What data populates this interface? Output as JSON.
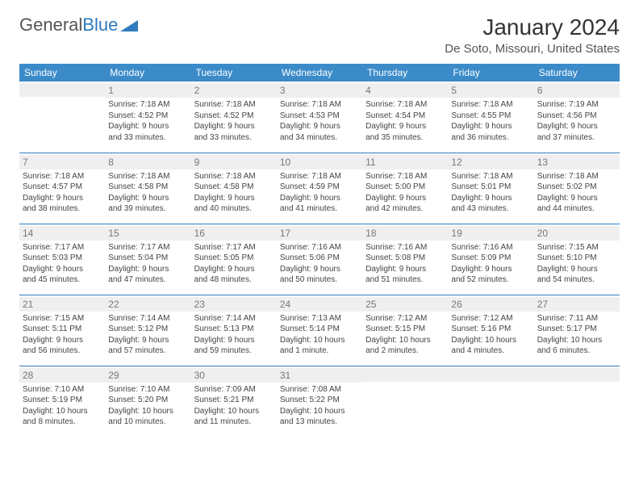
{
  "logo": {
    "text1": "General",
    "text2": "Blue"
  },
  "title": "January 2024",
  "location": "De Soto, Missouri, United States",
  "colors": {
    "header_bg": "#3b8bc9",
    "header_text": "#ffffff",
    "row_divider": "#2f7bbf",
    "daynum_bg": "#efefef",
    "daynum_text": "#777777",
    "body_text": "#444444",
    "logo_blue": "#2f7bbf"
  },
  "days_of_week": [
    "Sunday",
    "Monday",
    "Tuesday",
    "Wednesday",
    "Thursday",
    "Friday",
    "Saturday"
  ],
  "weeks": [
    [
      null,
      {
        "n": "1",
        "sr": "Sunrise: 7:18 AM",
        "ss": "Sunset: 4:52 PM",
        "d1": "Daylight: 9 hours",
        "d2": "and 33 minutes."
      },
      {
        "n": "2",
        "sr": "Sunrise: 7:18 AM",
        "ss": "Sunset: 4:52 PM",
        "d1": "Daylight: 9 hours",
        "d2": "and 33 minutes."
      },
      {
        "n": "3",
        "sr": "Sunrise: 7:18 AM",
        "ss": "Sunset: 4:53 PM",
        "d1": "Daylight: 9 hours",
        "d2": "and 34 minutes."
      },
      {
        "n": "4",
        "sr": "Sunrise: 7:18 AM",
        "ss": "Sunset: 4:54 PM",
        "d1": "Daylight: 9 hours",
        "d2": "and 35 minutes."
      },
      {
        "n": "5",
        "sr": "Sunrise: 7:18 AM",
        "ss": "Sunset: 4:55 PM",
        "d1": "Daylight: 9 hours",
        "d2": "and 36 minutes."
      },
      {
        "n": "6",
        "sr": "Sunrise: 7:19 AM",
        "ss": "Sunset: 4:56 PM",
        "d1": "Daylight: 9 hours",
        "d2": "and 37 minutes."
      }
    ],
    [
      {
        "n": "7",
        "sr": "Sunrise: 7:18 AM",
        "ss": "Sunset: 4:57 PM",
        "d1": "Daylight: 9 hours",
        "d2": "and 38 minutes."
      },
      {
        "n": "8",
        "sr": "Sunrise: 7:18 AM",
        "ss": "Sunset: 4:58 PM",
        "d1": "Daylight: 9 hours",
        "d2": "and 39 minutes."
      },
      {
        "n": "9",
        "sr": "Sunrise: 7:18 AM",
        "ss": "Sunset: 4:58 PM",
        "d1": "Daylight: 9 hours",
        "d2": "and 40 minutes."
      },
      {
        "n": "10",
        "sr": "Sunrise: 7:18 AM",
        "ss": "Sunset: 4:59 PM",
        "d1": "Daylight: 9 hours",
        "d2": "and 41 minutes."
      },
      {
        "n": "11",
        "sr": "Sunrise: 7:18 AM",
        "ss": "Sunset: 5:00 PM",
        "d1": "Daylight: 9 hours",
        "d2": "and 42 minutes."
      },
      {
        "n": "12",
        "sr": "Sunrise: 7:18 AM",
        "ss": "Sunset: 5:01 PM",
        "d1": "Daylight: 9 hours",
        "d2": "and 43 minutes."
      },
      {
        "n": "13",
        "sr": "Sunrise: 7:18 AM",
        "ss": "Sunset: 5:02 PM",
        "d1": "Daylight: 9 hours",
        "d2": "and 44 minutes."
      }
    ],
    [
      {
        "n": "14",
        "sr": "Sunrise: 7:17 AM",
        "ss": "Sunset: 5:03 PM",
        "d1": "Daylight: 9 hours",
        "d2": "and 45 minutes."
      },
      {
        "n": "15",
        "sr": "Sunrise: 7:17 AM",
        "ss": "Sunset: 5:04 PM",
        "d1": "Daylight: 9 hours",
        "d2": "and 47 minutes."
      },
      {
        "n": "16",
        "sr": "Sunrise: 7:17 AM",
        "ss": "Sunset: 5:05 PM",
        "d1": "Daylight: 9 hours",
        "d2": "and 48 minutes."
      },
      {
        "n": "17",
        "sr": "Sunrise: 7:16 AM",
        "ss": "Sunset: 5:06 PM",
        "d1": "Daylight: 9 hours",
        "d2": "and 50 minutes."
      },
      {
        "n": "18",
        "sr": "Sunrise: 7:16 AM",
        "ss": "Sunset: 5:08 PM",
        "d1": "Daylight: 9 hours",
        "d2": "and 51 minutes."
      },
      {
        "n": "19",
        "sr": "Sunrise: 7:16 AM",
        "ss": "Sunset: 5:09 PM",
        "d1": "Daylight: 9 hours",
        "d2": "and 52 minutes."
      },
      {
        "n": "20",
        "sr": "Sunrise: 7:15 AM",
        "ss": "Sunset: 5:10 PM",
        "d1": "Daylight: 9 hours",
        "d2": "and 54 minutes."
      }
    ],
    [
      {
        "n": "21",
        "sr": "Sunrise: 7:15 AM",
        "ss": "Sunset: 5:11 PM",
        "d1": "Daylight: 9 hours",
        "d2": "and 56 minutes."
      },
      {
        "n": "22",
        "sr": "Sunrise: 7:14 AM",
        "ss": "Sunset: 5:12 PM",
        "d1": "Daylight: 9 hours",
        "d2": "and 57 minutes."
      },
      {
        "n": "23",
        "sr": "Sunrise: 7:14 AM",
        "ss": "Sunset: 5:13 PM",
        "d1": "Daylight: 9 hours",
        "d2": "and 59 minutes."
      },
      {
        "n": "24",
        "sr": "Sunrise: 7:13 AM",
        "ss": "Sunset: 5:14 PM",
        "d1": "Daylight: 10 hours",
        "d2": "and 1 minute."
      },
      {
        "n": "25",
        "sr": "Sunrise: 7:12 AM",
        "ss": "Sunset: 5:15 PM",
        "d1": "Daylight: 10 hours",
        "d2": "and 2 minutes."
      },
      {
        "n": "26",
        "sr": "Sunrise: 7:12 AM",
        "ss": "Sunset: 5:16 PM",
        "d1": "Daylight: 10 hours",
        "d2": "and 4 minutes."
      },
      {
        "n": "27",
        "sr": "Sunrise: 7:11 AM",
        "ss": "Sunset: 5:17 PM",
        "d1": "Daylight: 10 hours",
        "d2": "and 6 minutes."
      }
    ],
    [
      {
        "n": "28",
        "sr": "Sunrise: 7:10 AM",
        "ss": "Sunset: 5:19 PM",
        "d1": "Daylight: 10 hours",
        "d2": "and 8 minutes."
      },
      {
        "n": "29",
        "sr": "Sunrise: 7:10 AM",
        "ss": "Sunset: 5:20 PM",
        "d1": "Daylight: 10 hours",
        "d2": "and 10 minutes."
      },
      {
        "n": "30",
        "sr": "Sunrise: 7:09 AM",
        "ss": "Sunset: 5:21 PM",
        "d1": "Daylight: 10 hours",
        "d2": "and 11 minutes."
      },
      {
        "n": "31",
        "sr": "Sunrise: 7:08 AM",
        "ss": "Sunset: 5:22 PM",
        "d1": "Daylight: 10 hours",
        "d2": "and 13 minutes."
      },
      null,
      null,
      null
    ]
  ]
}
